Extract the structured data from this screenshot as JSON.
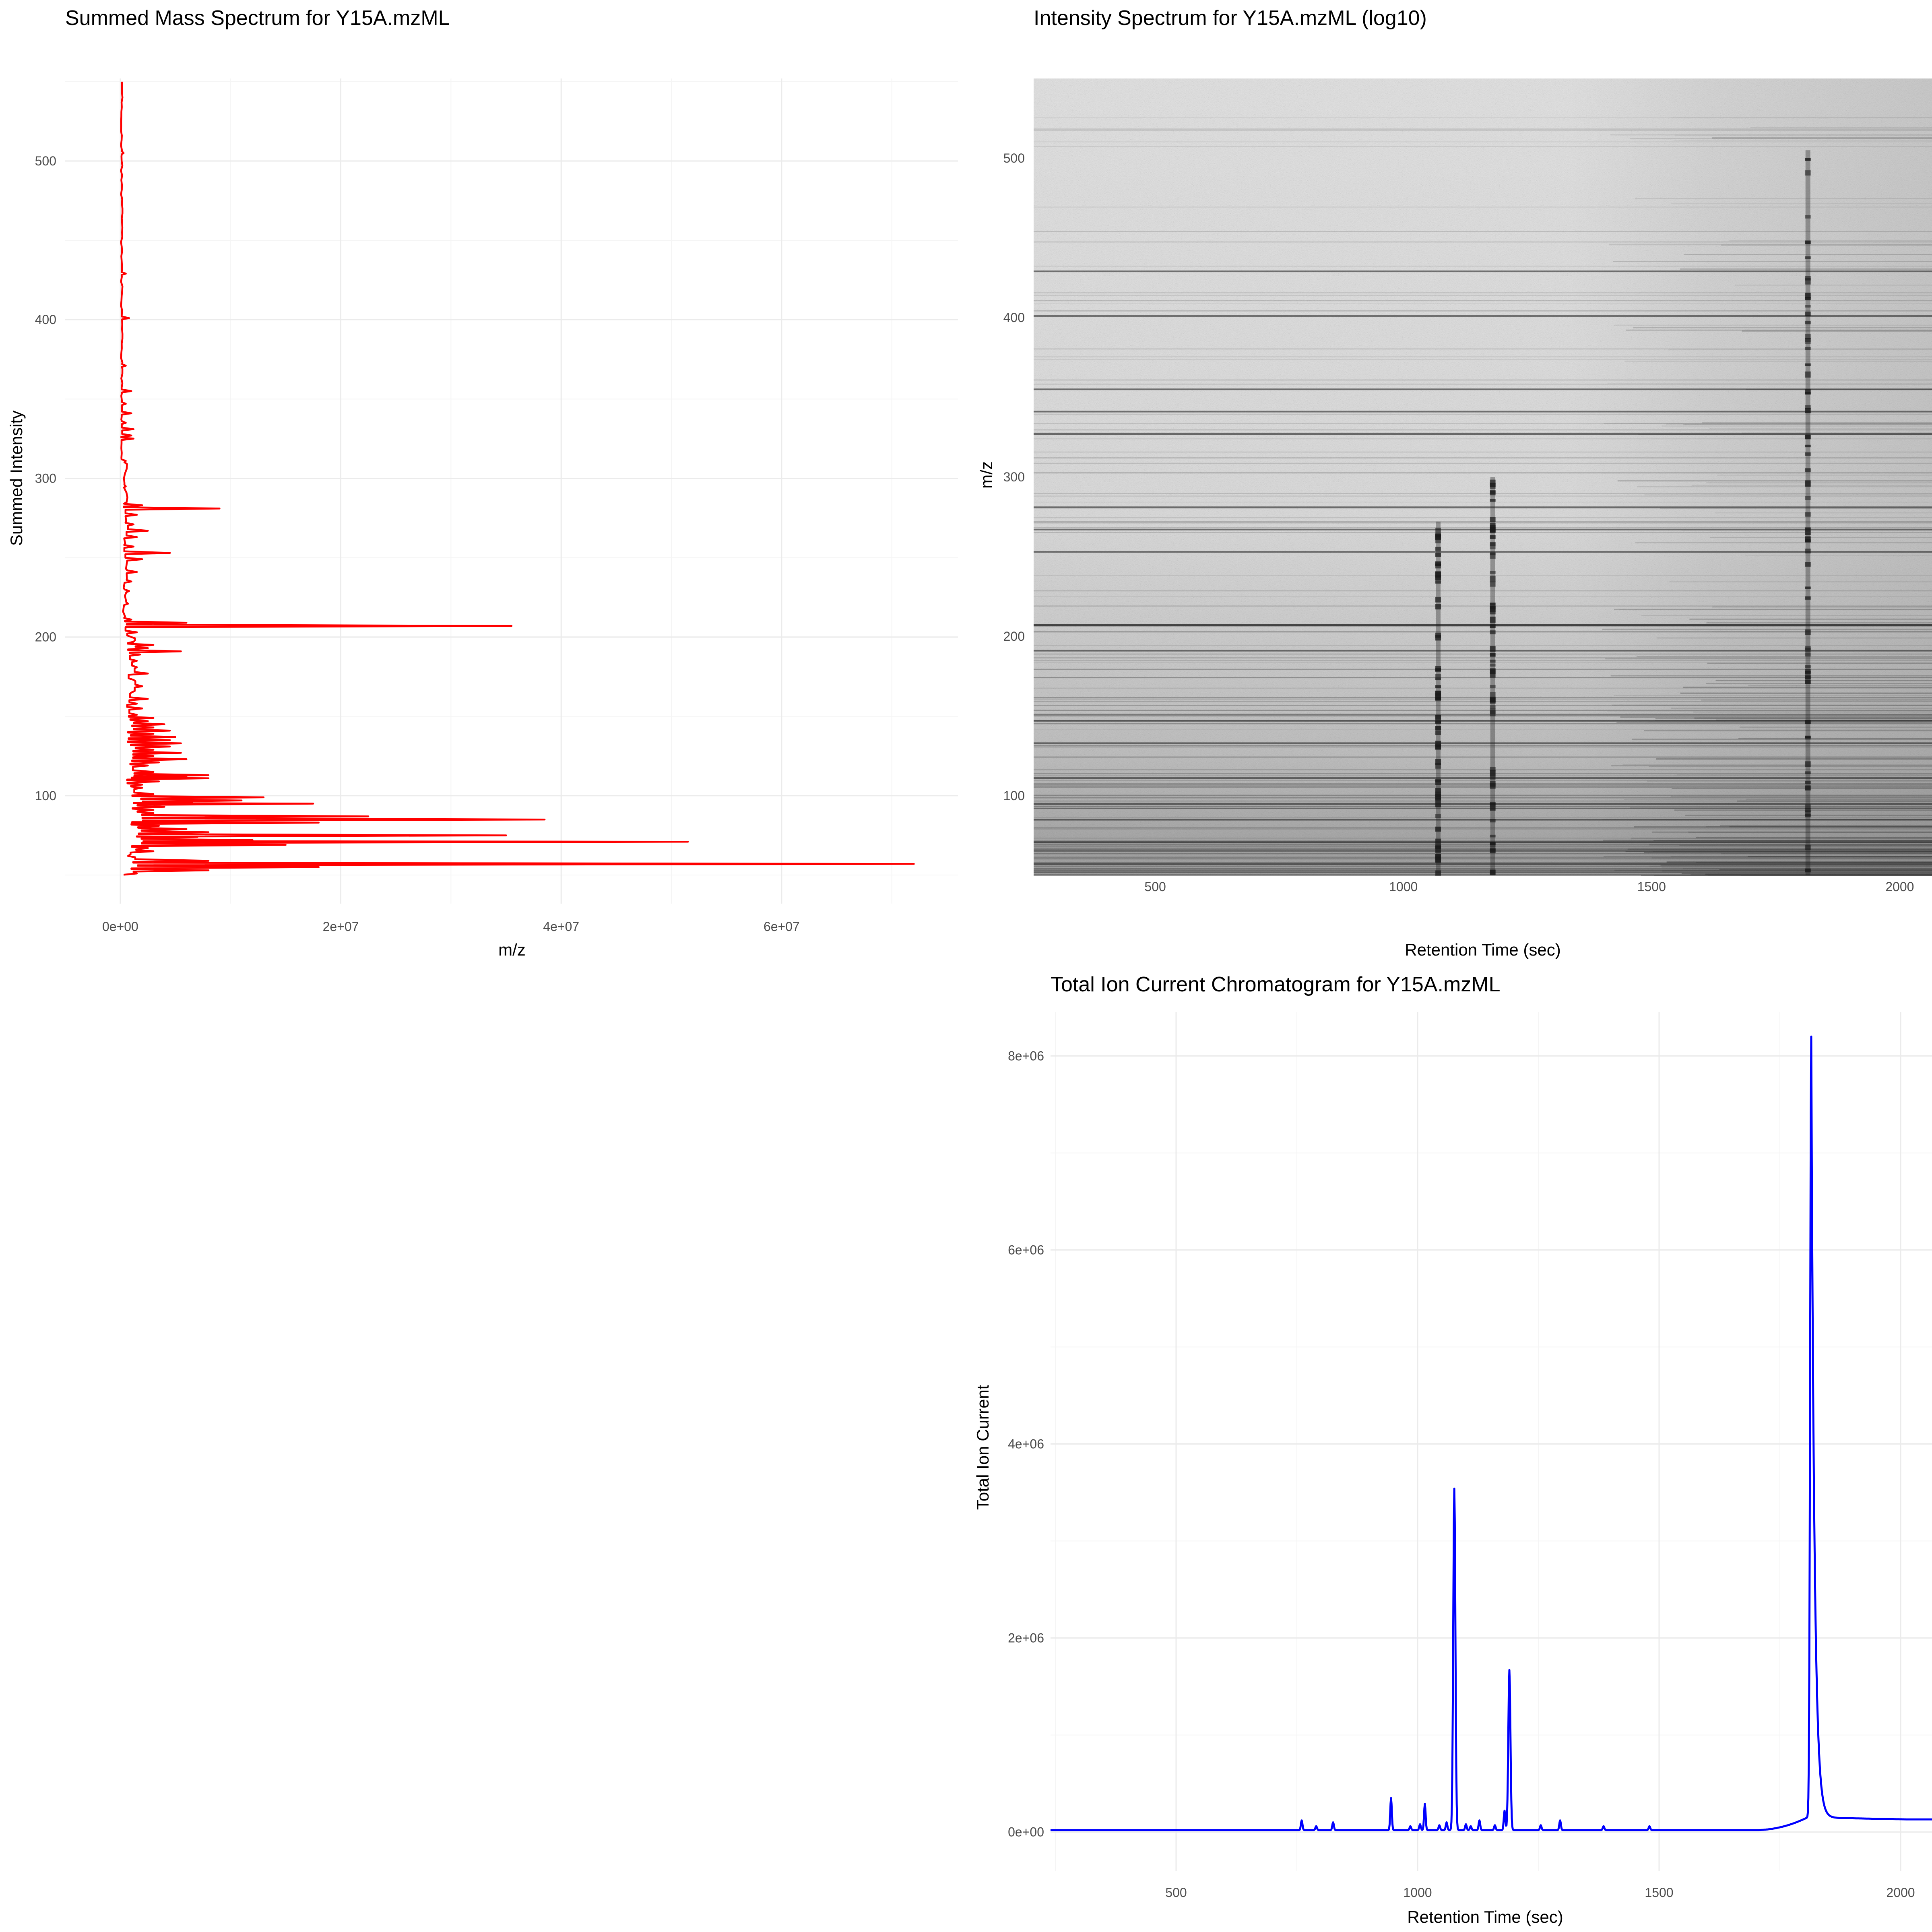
{
  "colors": {
    "spectrum_line": "#ff0000",
    "tic_line": "#0000ff",
    "grid_major": "#ebebeb",
    "grid_minor": "#f5f5f5",
    "heatmap_base": "#e6e6e6",
    "heatmap_dark": "#1a1a1a",
    "tick_text": "#4d4d4d"
  },
  "chart_data": [
    {
      "id": "summed_spectrum",
      "type": "line",
      "title": "Summed Mass Spectrum for  Y15A.mzML",
      "xlabel": "m/z",
      "ylabel": "Summed Intensity",
      "xlim": [
        -5000000,
        76000000
      ],
      "ylim": [
        32,
        552
      ],
      "xticks": [
        0,
        20000000,
        40000000,
        60000000
      ],
      "xtick_labels": [
        "0e+00",
        "2e+07",
        "4e+07",
        "6e+07"
      ],
      "yticks": [
        100,
        200,
        300,
        400,
        500
      ],
      "ytick_labels": [
        "100",
        "200",
        "300",
        "400",
        "500"
      ],
      "grid": true,
      "peaks": [
        [
          51,
          1500000
        ],
        [
          53,
          8000000
        ],
        [
          55,
          18000000
        ],
        [
          57,
          72000000
        ],
        [
          59,
          8000000
        ],
        [
          62,
          700000
        ],
        [
          65,
          3000000
        ],
        [
          67,
          2500000
        ],
        [
          69,
          15000000
        ],
        [
          71,
          51500000
        ],
        [
          72,
          12000000
        ],
        [
          74,
          7000000
        ],
        [
          75,
          35000000
        ],
        [
          77,
          8000000
        ],
        [
          79,
          6000000
        ],
        [
          81,
          3500000
        ],
        [
          83,
          18000000
        ],
        [
          84,
          9000000
        ],
        [
          85,
          38500000
        ],
        [
          87,
          22500000
        ],
        [
          89,
          3000000
        ],
        [
          91,
          3000000
        ],
        [
          93,
          4000000
        ],
        [
          95,
          17500000
        ],
        [
          96,
          6500000
        ],
        [
          97,
          11000000
        ],
        [
          99,
          13000000
        ],
        [
          101,
          3000000
        ],
        [
          105,
          2000000
        ],
        [
          107,
          2000000
        ],
        [
          109,
          3500000
        ],
        [
          111,
          8000000
        ],
        [
          112,
          6000000
        ],
        [
          113,
          8000000
        ],
        [
          115,
          3000000
        ],
        [
          119,
          2500000
        ],
        [
          121,
          3500000
        ],
        [
          123,
          6000000
        ],
        [
          125,
          3000000
        ],
        [
          127,
          5500000
        ],
        [
          129,
          3000000
        ],
        [
          131,
          4500000
        ],
        [
          133,
          5500000
        ],
        [
          135,
          4500000
        ],
        [
          137,
          5000000
        ],
        [
          139,
          3000000
        ],
        [
          141,
          4500000
        ],
        [
          143,
          3000000
        ],
        [
          145,
          4000000
        ],
        [
          147,
          2500000
        ],
        [
          149,
          3000000
        ],
        [
          151,
          1500000
        ],
        [
          155,
          2000000
        ],
        [
          158,
          1500000
        ],
        [
          161,
          2500000
        ],
        [
          165,
          1000000
        ],
        [
          169,
          2000000
        ],
        [
          173,
          1200000
        ],
        [
          177,
          2500000
        ],
        [
          181,
          1500000
        ],
        [
          185,
          1500000
        ],
        [
          189,
          1800000
        ],
        [
          191,
          5500000
        ],
        [
          193,
          2500000
        ],
        [
          195,
          3000000
        ],
        [
          197,
          1200000
        ],
        [
          200,
          1000000
        ],
        [
          203,
          1500000
        ],
        [
          207,
          35500000
        ],
        [
          209,
          6000000
        ],
        [
          211,
          1000000
        ],
        [
          221,
          700000
        ],
        [
          229,
          800000
        ],
        [
          235,
          1000000
        ],
        [
          241,
          1500000
        ],
        [
          249,
          2000000
        ],
        [
          253,
          4500000
        ],
        [
          257,
          1200000
        ],
        [
          263,
          1500000
        ],
        [
          267,
          2500000
        ],
        [
          271,
          1200000
        ],
        [
          277,
          1500000
        ],
        [
          281,
          9000000
        ],
        [
          283,
          2000000
        ],
        [
          295,
          500000
        ],
        [
          311,
          500000
        ],
        [
          325,
          1200000
        ],
        [
          327,
          1000000
        ],
        [
          331,
          1200000
        ],
        [
          335,
          500000
        ],
        [
          341,
          1000000
        ],
        [
          347,
          500000
        ],
        [
          355,
          1000000
        ],
        [
          371,
          500000
        ],
        [
          401,
          800000
        ],
        [
          429,
          500000
        ],
        [
          505,
          300000
        ]
      ]
    },
    {
      "id": "intensity_heatmap",
      "type": "heatmap",
      "title": "Intensity Spectrum for  Y15A.mzML (log10)",
      "xlabel": "Retention Time (sec)",
      "ylabel": "m/z",
      "xlim": [
        255,
        2065
      ],
      "ylim": [
        50,
        550
      ],
      "xticks": [
        500,
        1000,
        1500,
        2000
      ],
      "yticks": [
        100,
        200,
        300,
        400,
        500
      ],
      "grid": false,
      "dark_rt_bands": [
        1070,
        1180,
        1815
      ],
      "dark_mz_lines": [
        57,
        71,
        85,
        95,
        111,
        133,
        147,
        191,
        207,
        253,
        267,
        281,
        327,
        341,
        355,
        401,
        429
      ]
    },
    {
      "id": "tic_chromatogram",
      "type": "line",
      "title": "Total Ion Current Chromatogram for  Y15A.mzML",
      "xlabel": "Retention Time (sec)",
      "ylabel": "Total Ion Current",
      "xlim": [
        240,
        2065
      ],
      "ylim": [
        -400000,
        8450000
      ],
      "xticks": [
        500,
        1000,
        1500,
        2000
      ],
      "yticks": [
        0,
        2000000,
        4000000,
        6000000,
        8000000
      ],
      "ytick_labels": [
        "0e+00",
        "2e+06",
        "4e+06",
        "6e+06",
        "8e+06"
      ],
      "grid": true,
      "baseline": 20000,
      "peaks": [
        [
          760,
          100000
        ],
        [
          790,
          40000
        ],
        [
          825,
          80000
        ],
        [
          945,
          330000
        ],
        [
          985,
          40000
        ],
        [
          1005,
          60000
        ],
        [
          1015,
          270000
        ],
        [
          1045,
          50000
        ],
        [
          1060,
          80000
        ],
        [
          1076,
          3520000
        ],
        [
          1100,
          60000
        ],
        [
          1110,
          40000
        ],
        [
          1128,
          100000
        ],
        [
          1160,
          50000
        ],
        [
          1180,
          200000
        ],
        [
          1190,
          1650000
        ],
        [
          1255,
          50000
        ],
        [
          1295,
          100000
        ],
        [
          1385,
          40000
        ],
        [
          1480,
          40000
        ],
        [
          1815,
          8050000
        ]
      ]
    }
  ]
}
